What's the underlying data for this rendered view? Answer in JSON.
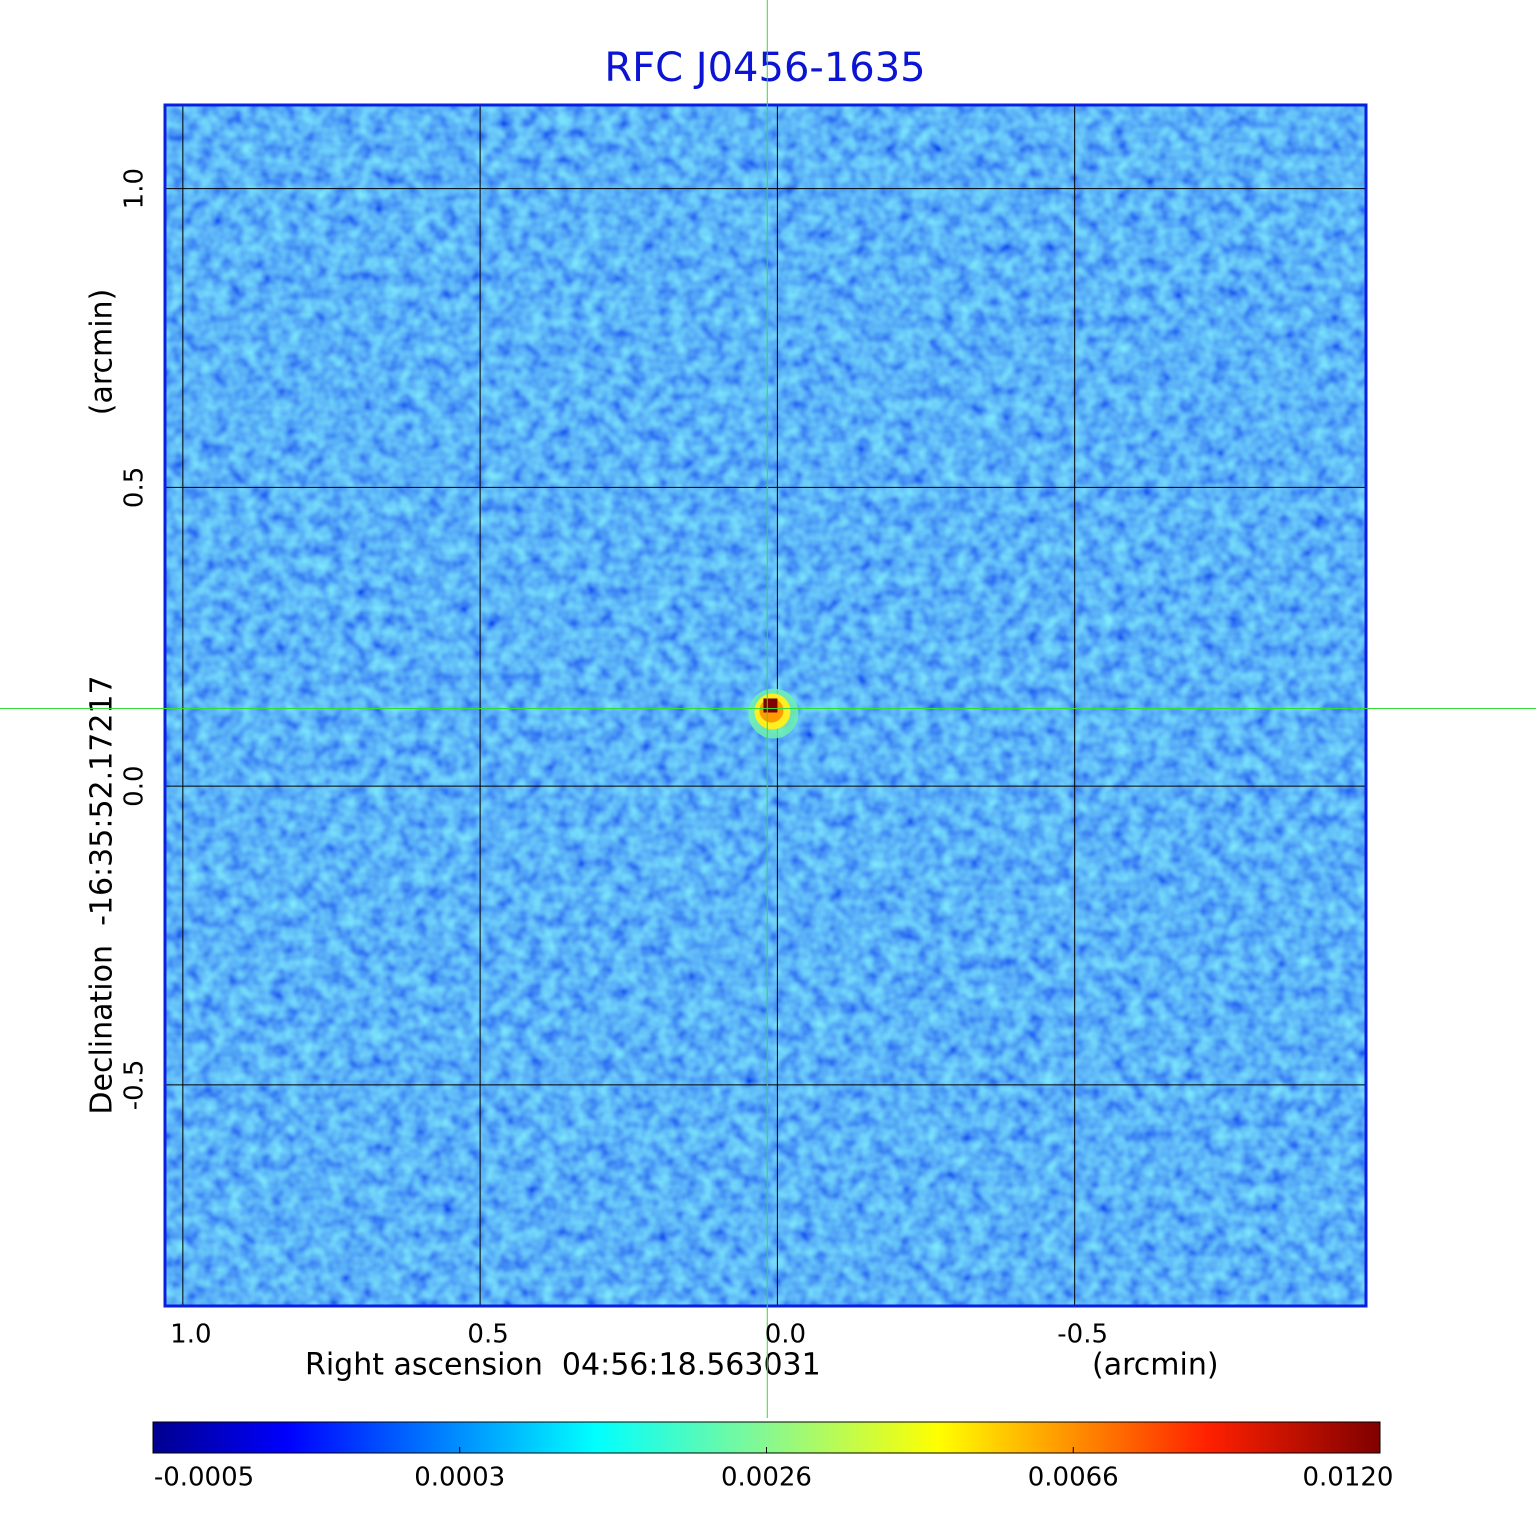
{
  "chart_data": {
    "type": "image",
    "title": "RFC J0456-1635",
    "x_label": "Right ascension  04:56:18.563031",
    "x_unit": "(arcmin)",
    "y_label": "Declination  -16:35:52.17217",
    "y_unit": "(arcmin)",
    "xlim": [
      1.03,
      -0.99
    ],
    "ylim": [
      -0.87,
      1.14
    ],
    "xticks": [
      {
        "value": 1,
        "label": "1.0"
      },
      {
        "value": 0.5,
        "label": "0.5"
      },
      {
        "value": 0,
        "label": "0.0"
      },
      {
        "value": -0.5,
        "label": "-0.5"
      }
    ],
    "yticks": [
      {
        "value": -0.5,
        "label": "-0.5"
      },
      {
        "value": 0,
        "label": "0.0"
      },
      {
        "value": 0.5,
        "label": "0.5"
      },
      {
        "value": 1,
        "label": "1.0"
      }
    ],
    "grid": true,
    "colormap": "jet",
    "crosshair": {
      "x": 0.017,
      "y": 0.13,
      "color": "#33dd33"
    },
    "source": {
      "x": 0.01,
      "y": 0.13,
      "peak": 0.012
    },
    "colorbar": {
      "ticks": [
        -0.0005,
        0.0003,
        0.0026,
        0.0066,
        {
          "value": 0.012,
          "label": "0.0120"
        }
      ]
    }
  }
}
